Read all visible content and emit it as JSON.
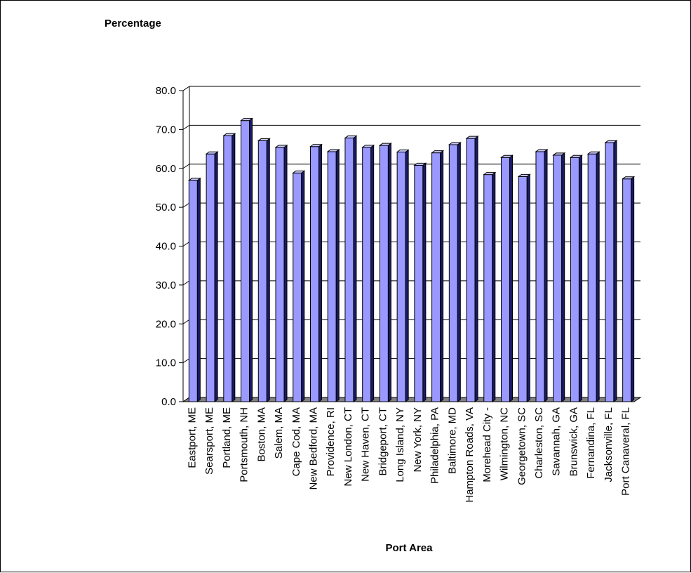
{
  "chart_data": {
    "type": "bar",
    "ylabel": "Percentage",
    "xlabel": "Port Area",
    "ylim": [
      0,
      80
    ],
    "yticks": [
      "0.0",
      "10.0",
      "20.0",
      "30.0",
      "40.0",
      "50.0",
      "60.0",
      "70.0",
      "80.0"
    ],
    "grid": true,
    "categories": [
      "Eastport, ME",
      "Searsport, ME",
      "Portland, ME",
      "Portsmouth, NH",
      "Boston, MA",
      "Salem, MA",
      "Cape Cod, MA",
      "New Bedford, MA",
      "Providence, RI",
      "New London, CT",
      "New Haven, CT",
      "Bridgeport, CT",
      "Long Island, NY",
      "New York, NY",
      "Philadelphia, PA",
      "Baltimore, MD",
      "Hampton Roads, VA",
      "Morehead City -",
      "Wilmington, NC",
      "Georgetown, SC",
      "Charleston, SC",
      "Savannah, GA",
      "Brunswick, GA",
      "Fernandina, FL",
      "Jacksonville, FL",
      "Port Canaveral, FL"
    ],
    "values": [
      56.9,
      63.7,
      68.4,
      72.3,
      67.1,
      65.4,
      58.8,
      65.6,
      64.3,
      67.8,
      65.4,
      65.9,
      64.2,
      60.8,
      64.0,
      66.1,
      67.7,
      58.4,
      62.8,
      57.9,
      64.3,
      63.4,
      62.8,
      63.7,
      66.6,
      57.3
    ],
    "colors": {
      "bar_face": "#9999ff",
      "bar_top": "#ccccff",
      "bar_side": "#1a1a66",
      "floor": "#808080",
      "grid": "#000000"
    }
  }
}
